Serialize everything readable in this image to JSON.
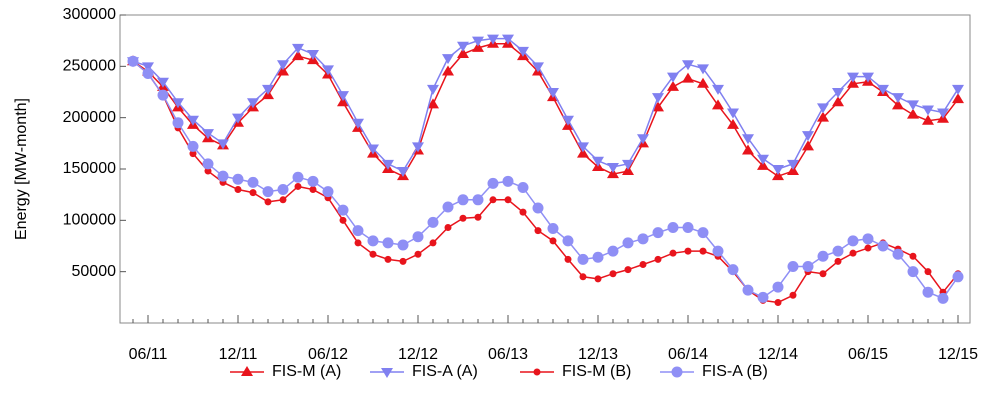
{
  "chart_data": {
    "type": "line",
    "y_label": "Energy [MW-month]",
    "categories": [
      null,
      "06/11",
      null,
      null,
      null,
      null,
      null,
      "12/11",
      null,
      null,
      null,
      null,
      null,
      "06/12",
      null,
      null,
      null,
      null,
      null,
      "12/12",
      null,
      null,
      null,
      null,
      null,
      "06/13",
      null,
      null,
      null,
      null,
      null,
      "12/13",
      null,
      null,
      null,
      null,
      null,
      "06/14",
      null,
      null,
      null,
      null,
      null,
      "12/14",
      null,
      null,
      null,
      null,
      null,
      "06/15",
      null,
      null,
      null,
      null,
      null,
      "12/15"
    ],
    "ylim": [
      0,
      300000
    ],
    "yticks": [
      50000,
      100000,
      150000,
      200000,
      250000,
      300000
    ],
    "legend": "bottom",
    "series": [
      {
        "name": "FIS-M (A)",
        "color": "#e8141c",
        "marker": "triangle-up",
        "values": [
          255000,
          245000,
          230000,
          210000,
          193000,
          180000,
          173000,
          195000,
          210000,
          222000,
          245000,
          260000,
          256000,
          242000,
          215000,
          190000,
          165000,
          150000,
          143000,
          168000,
          213000,
          245000,
          262000,
          268000,
          272000,
          272000,
          260000,
          245000,
          220000,
          192000,
          165000,
          152000,
          145000,
          148000,
          175000,
          210000,
          230000,
          238000,
          233000,
          212000,
          193000,
          168000,
          153000,
          143000,
          148000,
          172000,
          200000,
          215000,
          233000,
          235000,
          225000,
          212000,
          203000,
          197000,
          199000,
          218000
        ]
      },
      {
        "name": "FIS-A (A)",
        "color": "#8080f0",
        "marker": "triangle-down",
        "values": [
          255000,
          250000,
          235000,
          215000,
          198000,
          185000,
          175000,
          200000,
          215000,
          228000,
          252000,
          268000,
          262000,
          247000,
          222000,
          195000,
          170000,
          155000,
          148000,
          172000,
          228000,
          258000,
          270000,
          275000,
          277000,
          277000,
          265000,
          250000,
          225000,
          198000,
          172000,
          158000,
          152000,
          155000,
          180000,
          220000,
          240000,
          252000,
          248000,
          228000,
          205000,
          180000,
          160000,
          150000,
          155000,
          183000,
          210000,
          225000,
          240000,
          240000,
          228000,
          220000,
          213000,
          208000,
          205000,
          228000
        ]
      },
      {
        "name": "FIS-M (B)",
        "color": "#e8141c",
        "marker": "circle-small",
        "values": [
          255000,
          243000,
          222000,
          190000,
          165000,
          148000,
          137000,
          130000,
          127000,
          118000,
          120000,
          133000,
          130000,
          122000,
          100000,
          78000,
          67000,
          62000,
          60000,
          67000,
          78000,
          93000,
          102000,
          103000,
          120000,
          120000,
          108000,
          90000,
          80000,
          62000,
          45000,
          43000,
          48000,
          52000,
          57000,
          62000,
          68000,
          70000,
          70000,
          65000,
          50000,
          32000,
          22000,
          20000,
          27000,
          50000,
          48000,
          60000,
          68000,
          73000,
          78000,
          72000,
          65000,
          50000,
          30000,
          48000
        ]
      },
      {
        "name": "FIS-A (B)",
        "color": "#8f8ff5",
        "marker": "circle-large",
        "values": [
          255000,
          243000,
          222000,
          195000,
          172000,
          155000,
          143000,
          140000,
          137000,
          128000,
          130000,
          142000,
          138000,
          128000,
          110000,
          90000,
          80000,
          78000,
          76000,
          84000,
          98000,
          113000,
          120000,
          120000,
          136000,
          138000,
          132000,
          112000,
          92000,
          80000,
          62000,
          64000,
          70000,
          78000,
          82000,
          88000,
          93000,
          93000,
          88000,
          70000,
          52000,
          32000,
          25000,
          35000,
          55000,
          55000,
          65000,
          70000,
          80000,
          82000,
          75000,
          67000,
          50000,
          30000,
          24000,
          45000
        ]
      }
    ]
  }
}
